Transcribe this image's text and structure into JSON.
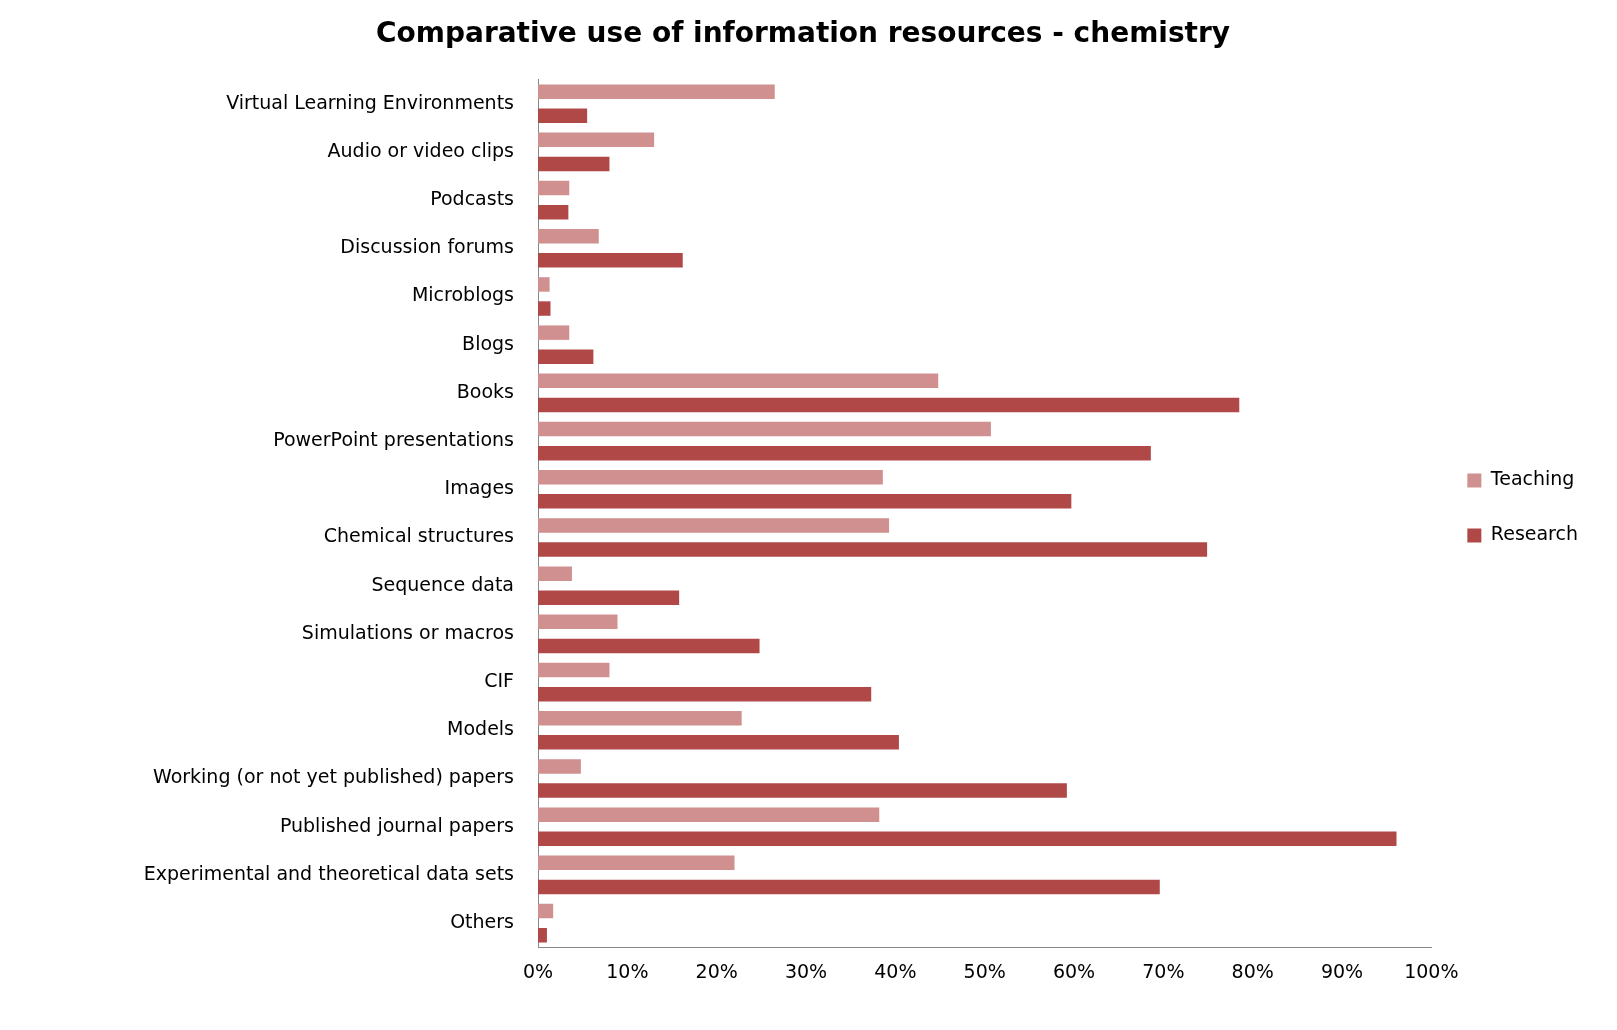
{
  "chart_data": {
    "type": "bar",
    "orientation": "horizontal",
    "title": "Comparative use of information resources - chemistry",
    "categories": [
      "Virtual Learning Environments",
      "Audio or video clips",
      "Podcasts",
      "Discussion forums",
      "Microblogs",
      "Blogs",
      "Books",
      "PowerPoint presentations",
      "Images",
      "Chemical structures",
      "Sequence data",
      "Simulations or macros",
      "CIF",
      "Models",
      "Working (or not yet published) papers",
      "Published journal papers",
      "Experimental and theoretical data sets",
      "Others"
    ],
    "series": [
      {
        "name": "Teaching",
        "color": "#d09090",
        "values": [
          26.5,
          13,
          3.5,
          6.8,
          1.3,
          3.5,
          44.8,
          50.7,
          38.6,
          39.3,
          3.8,
          8.9,
          8,
          22.8,
          4.8,
          38.2,
          22,
          1.7
        ]
      },
      {
        "name": "Research",
        "color": "#b04848",
        "values": [
          5.5,
          8,
          3.4,
          16.2,
          1.4,
          6.2,
          78.5,
          68.6,
          59.7,
          74.9,
          15.8,
          24.8,
          37.3,
          40.4,
          59.2,
          96.1,
          69.6,
          1
        ]
      }
    ],
    "xlim": [
      0,
      100
    ],
    "xticks": [
      {
        "value": 0,
        "label": "0%"
      },
      {
        "value": 10,
        "label": "10%"
      },
      {
        "value": 20,
        "label": "20%"
      },
      {
        "value": 30,
        "label": "30%"
      },
      {
        "value": 40,
        "label": "40%"
      },
      {
        "value": 50,
        "label": "50%"
      },
      {
        "value": 60,
        "label": "60%"
      },
      {
        "value": 70,
        "label": "70%"
      },
      {
        "value": 80,
        "label": "80%"
      },
      {
        "value": 90,
        "label": "90%"
      },
      {
        "value": 100,
        "label": "100%"
      }
    ],
    "grid": false,
    "legend": "right"
  }
}
